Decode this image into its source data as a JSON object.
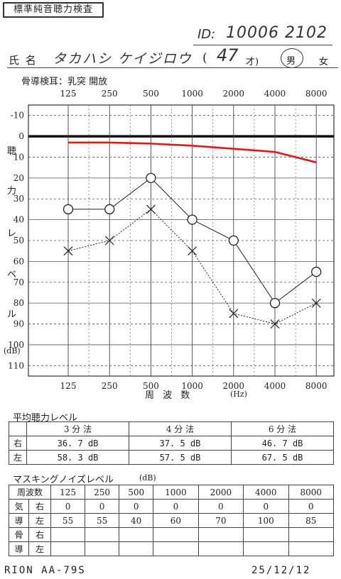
{
  "header": {
    "form_title": "標準純音聴力検査",
    "id_label": "ID:",
    "id_value": "10006 2102",
    "name_label": "氏 名",
    "name_value": "タカハシ ケイジロウ",
    "age_open": "(",
    "age_value": "47",
    "age_unit": "才)",
    "sex_male": "男",
    "sex_female": "女",
    "bone_test_note": "骨導検耳：乳突 開放"
  },
  "chart_data": {
    "type": "line",
    "x": [
      125,
      250,
      500,
      1000,
      2000,
      4000,
      8000
    ],
    "x_tick_labels": [
      "125",
      "250",
      "500",
      "1000",
      "2000",
      "4000",
      "8000"
    ],
    "xlabel": "周 波 数",
    "xlabel_unit": "(Hz)",
    "ylabel_chars": [
      "聴",
      "力",
      "レ",
      "ベ",
      "ル"
    ],
    "ylabel_unit": "(dB)",
    "y_ticks": [
      -10,
      0,
      10,
      20,
      30,
      40,
      50,
      60,
      70,
      80,
      90,
      100,
      110
    ],
    "ylim": [
      -15,
      115
    ],
    "y_inverted": true,
    "x_log_scale": true,
    "grid": true,
    "series": [
      {
        "values": [
          35,
          35,
          20,
          40,
          50,
          80,
          65
        ],
        "marker": "circle",
        "line": "solid",
        "color": "#222222"
      },
      {
        "values": [
          55,
          50,
          35,
          55,
          85,
          90,
          80
        ],
        "marker": "cross",
        "line": "dotted",
        "color": "#222222"
      },
      {
        "values": [
          3,
          3,
          3.5,
          4.5,
          6,
          7.5,
          12.5
        ],
        "marker": "none",
        "line": "solid",
        "color": "#e01818"
      }
    ]
  },
  "average_hearing": {
    "title": "平均聴力レベル",
    "methods": [
      "3 分 法",
      "4 分 法",
      "6 分 法"
    ],
    "rows": [
      {
        "ear": "右",
        "values": [
          "36. 7 dB",
          "37. 5 dB",
          "46. 7 dB"
        ]
      },
      {
        "ear": "左",
        "values": [
          "58. 3 dB",
          "57. 5 dB",
          "67. 5 dB"
        ]
      }
    ]
  },
  "masking": {
    "title": "マスキングノイズレベル",
    "unit": "(dB)",
    "freq_header": "周波数",
    "frequencies": [
      "125",
      "250",
      "500",
      "1000",
      "2000",
      "4000",
      "8000"
    ],
    "rows": [
      {
        "type": "気",
        "ear": "右",
        "values": [
          "0",
          "0",
          "0",
          "0",
          "0",
          "0",
          "0"
        ]
      },
      {
        "type": "導",
        "ear": "左",
        "values": [
          "55",
          "55",
          "40",
          "60",
          "70",
          "100",
          "85"
        ]
      },
      {
        "type": "骨",
        "ear": "右",
        "values": [
          "",
          "",
          "",
          "",
          "",
          "",
          ""
        ]
      },
      {
        "type": "導",
        "ear": "左",
        "values": [
          "",
          "",
          "",
          "",
          "",
          "",
          ""
        ]
      }
    ]
  },
  "footer": {
    "device": "RION AA-79S",
    "date": "25/12/12"
  }
}
